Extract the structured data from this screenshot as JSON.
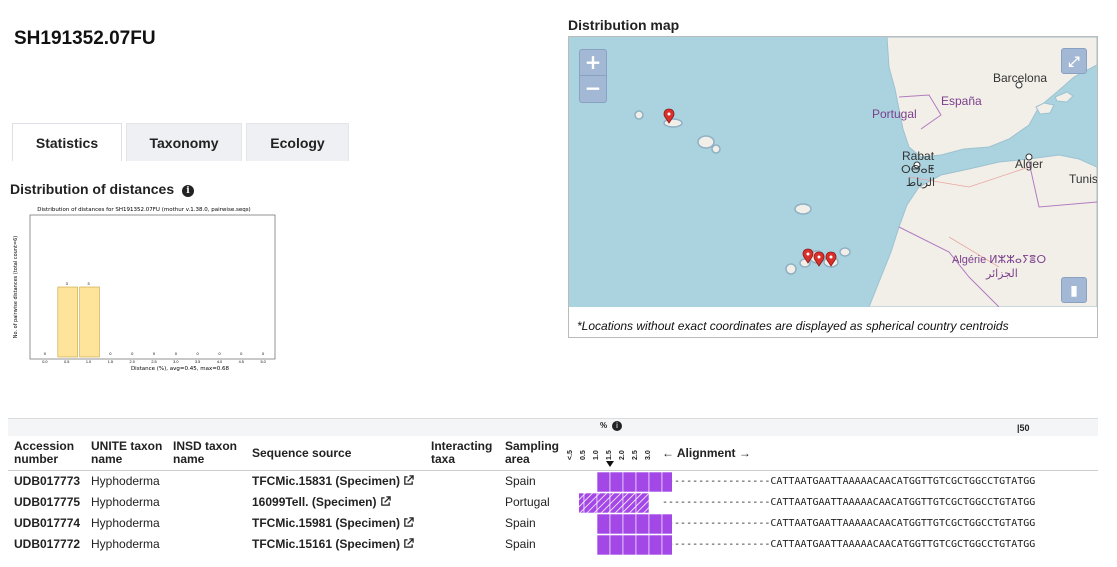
{
  "sh_code": "SH191352.07FU",
  "tabs": [
    {
      "label": "Statistics",
      "active": true
    },
    {
      "label": "Taxonomy",
      "active": false
    },
    {
      "label": "Ecology",
      "active": false
    }
  ],
  "distribution": {
    "title": "Distribution of distances",
    "info_icon": "info-circle-icon"
  },
  "chart_data": {
    "type": "bar",
    "title": "Distribution of distances for SH191352.07FU (mothur v.1.38.0, pairwise.seqs)",
    "xlabel": "Distance (%), avg=0.45, max=0.68",
    "ylabel": "No. of pairwise distances (total count=6)",
    "categories": [
      "0.0",
      "0.5",
      "1.0",
      "1.5",
      "2.0",
      "2.5",
      "3.0",
      "3.5",
      "4.0",
      "4.5",
      "5.0"
    ],
    "values": [
      0,
      3,
      3,
      0,
      0,
      0,
      0,
      0,
      0,
      0,
      0
    ],
    "ylim": [
      0,
      6
    ],
    "bar_color": "#fde49a"
  },
  "map": {
    "title": "Distribution map",
    "zoom_in": "+",
    "zoom_out": "−",
    "note": "*Locations without exact coordinates are displayed as spherical country centroids",
    "labels": {
      "barcelona": "Barcelona",
      "espana": "España",
      "portugal": "Portugal",
      "rabat": "Rabat",
      "rabat_tif": "ⵔⴱⴰⵟ",
      "rabat_ar": "الرباط",
      "alger": "Alger",
      "tunis": "Tunis",
      "algerie": "Algérie ⵍⵣⵣⴰⵢⴻⵔ",
      "algerie_ar": "الجزائر"
    },
    "water_color": "#aad3df",
    "land_color": "#f2efe9",
    "marker_color": "#d9302c"
  },
  "table": {
    "percent_label": "%",
    "ruler_label": "|50",
    "headers": {
      "accession": "Accession number",
      "unite": "UNITE taxon name",
      "insd": "INSD taxon name",
      "source": "Sequence source",
      "interacting": "Interacting taxa",
      "sampling": "Sampling area",
      "alignment": "← Alignment →"
    },
    "percent_columns": [
      "<.5",
      "0.5",
      "1.0",
      "1.5",
      "2.0",
      "2.5",
      "3.0"
    ],
    "rows": [
      {
        "accession": "UDB017773",
        "taxon": "Hyphoderma",
        "source": "TFCMic.15831 (Specimen)",
        "area": "Spain",
        "hatched": false,
        "sequence": "------------------CATTAATGAATTAAAAACAACATGGTTGTCGCTGGCCTGTATGG"
      },
      {
        "accession": "UDB017775",
        "taxon": "Hyphoderma",
        "source": "16099Tell. (Specimen)",
        "area": "Portugal",
        "hatched": true,
        "sequence": "------------------CATTAATGAATTAAAAACAACATGGTTGTCGCTGGCCTGTATGG"
      },
      {
        "accession": "UDB017774",
        "taxon": "Hyphoderma",
        "source": "TFCMic.15981 (Specimen)",
        "area": "Spain",
        "hatched": false,
        "sequence": "------------------CATTAATGAATTAAAAACAACATGGTTGTCGCTGGCCTGTATGG"
      },
      {
        "accession": "UDB017772",
        "taxon": "Hyphoderma",
        "source": "TFCMic.15161 (Specimen)",
        "area": "Spain",
        "hatched": false,
        "sequence": "------------------CATTAATGAATTAAAAACAACATGGTTGTCGCTGGCCTGTATGG"
      }
    ],
    "cell_color": "#a347e6"
  }
}
